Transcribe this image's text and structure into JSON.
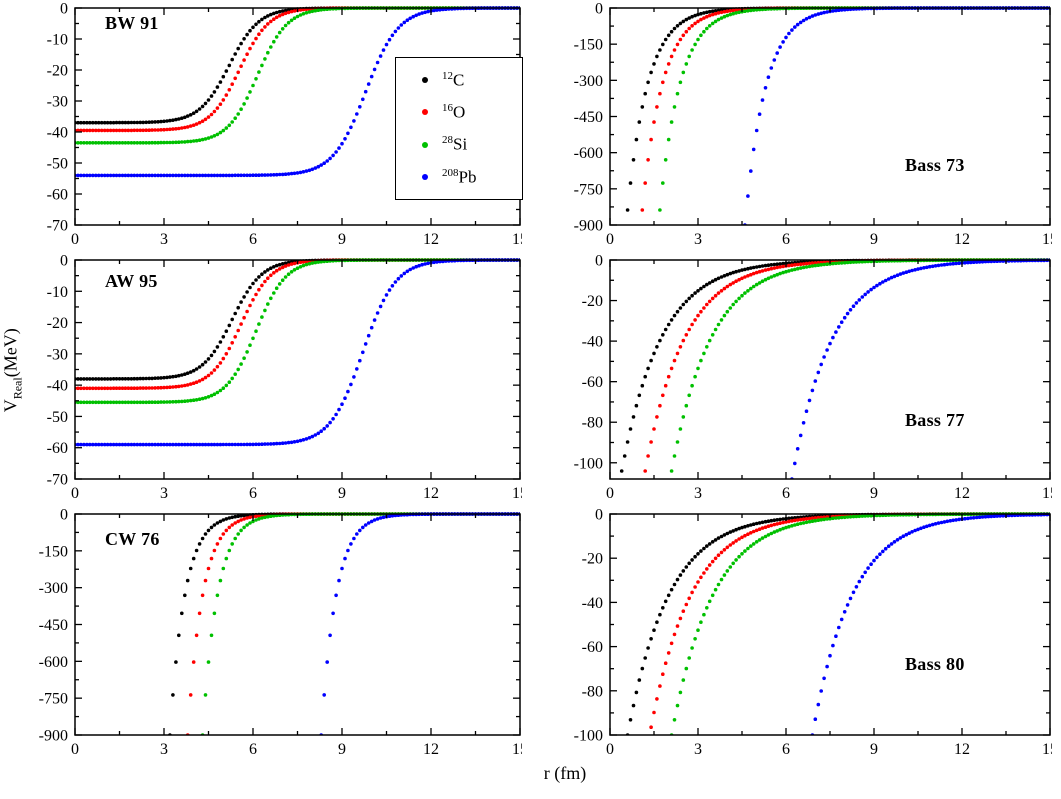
{
  "figure": {
    "xlabel": "r (fm)",
    "ylabel": {
      "main": "V",
      "sub": "Real",
      "unit": "(MeV)"
    }
  },
  "legend": {
    "entries": [
      {
        "mass": "12",
        "symbol": "C",
        "color": "#000000"
      },
      {
        "mass": "16",
        "symbol": "O",
        "color": "#ff0000"
      },
      {
        "mass": "28",
        "symbol": "Si",
        "color": "#00c000"
      },
      {
        "mass": "208",
        "symbol": "Pb",
        "color": "#0000ff"
      }
    ]
  },
  "chart_data": [
    {
      "id": "bw91",
      "type": "scatter",
      "title": "BW 91",
      "xlim": [
        0,
        15
      ],
      "ylim": [
        -70,
        0
      ],
      "xticks": [
        0,
        3,
        6,
        9,
        12,
        15
      ],
      "yticks": [
        0,
        -10,
        -20,
        -30,
        -40,
        -50,
        -60,
        -70
      ],
      "x_minor": 1.5,
      "y_minor": 5,
      "xlabel": "r (fm)",
      "ylabel": "V_Real (MeV)",
      "series": [
        {
          "name": "12C",
          "color": "#000000",
          "model": "woods-saxon",
          "V0": 37,
          "R": 5.2,
          "a": 0.5
        },
        {
          "name": "16O",
          "color": "#ff0000",
          "model": "woods-saxon",
          "V0": 39.5,
          "R": 5.55,
          "a": 0.5
        },
        {
          "name": "28Si",
          "color": "#00c000",
          "model": "woods-saxon",
          "V0": 43.5,
          "R": 6.15,
          "a": 0.5
        },
        {
          "name": "208Pb",
          "color": "#0000ff",
          "model": "woods-saxon",
          "V0": 54,
          "R": 9.8,
          "a": 0.55
        }
      ]
    },
    {
      "id": "bass73",
      "type": "scatter",
      "title": "Bass 73",
      "xlim": [
        0,
        15
      ],
      "ylim": [
        -900,
        0
      ],
      "xticks": [
        0,
        3,
        6,
        9,
        12,
        15
      ],
      "yticks": [
        0,
        -150,
        -300,
        -450,
        -600,
        -750,
        -900
      ],
      "x_minor": 1.5,
      "y_minor": 75,
      "xlabel": "r (fm)",
      "ylabel": "V_Real (MeV)",
      "series": [
        {
          "name": "12C",
          "color": "#000000",
          "model": "exp",
          "V0": 900,
          "r0": 0.55,
          "d": 0.7
        },
        {
          "name": "16O",
          "color": "#ff0000",
          "model": "exp",
          "V0": 900,
          "r0": 1.05,
          "d": 0.7
        },
        {
          "name": "28Si",
          "color": "#00c000",
          "model": "exp",
          "V0": 900,
          "r0": 1.65,
          "d": 0.7
        },
        {
          "name": "208Pb",
          "color": "#0000ff",
          "model": "exp",
          "V0": 900,
          "r0": 4.6,
          "d": 0.7
        }
      ]
    },
    {
      "id": "aw95",
      "type": "scatter",
      "title": "AW 95",
      "xlim": [
        0,
        15
      ],
      "ylim": [
        -70,
        0
      ],
      "xticks": [
        0,
        3,
        6,
        9,
        12,
        15
      ],
      "yticks": [
        0,
        -10,
        -20,
        -30,
        -40,
        -50,
        -60,
        -70
      ],
      "x_minor": 1.5,
      "y_minor": 5,
      "xlabel": "r (fm)",
      "ylabel": "V_Real (MeV)",
      "series": [
        {
          "name": "12C",
          "color": "#000000",
          "model": "woods-saxon",
          "V0": 38,
          "R": 5.3,
          "a": 0.5
        },
        {
          "name": "16O",
          "color": "#ff0000",
          "model": "woods-saxon",
          "V0": 41,
          "R": 5.6,
          "a": 0.5
        },
        {
          "name": "28Si",
          "color": "#00c000",
          "model": "woods-saxon",
          "V0": 45.5,
          "R": 6.1,
          "a": 0.5
        },
        {
          "name": "208Pb",
          "color": "#0000ff",
          "model": "woods-saxon",
          "V0": 59,
          "R": 9.7,
          "a": 0.55
        }
      ]
    },
    {
      "id": "bass77",
      "type": "scatter",
      "title": "Bass 77",
      "xlim": [
        0,
        15
      ],
      "ylim": [
        -108,
        0
      ],
      "xticks": [
        0,
        3,
        6,
        9,
        12,
        15
      ],
      "yticks": [
        0,
        -20,
        -40,
        -60,
        -80,
        -100
      ],
      "x_minor": 1.5,
      "y_minor": 10,
      "xlabel": "r (fm)",
      "ylabel": "V_Real (MeV)",
      "series": [
        {
          "name": "12C",
          "color": "#000000",
          "model": "exp",
          "V0": 108,
          "r0": 0.35,
          "d": 1.35
        },
        {
          "name": "16O",
          "color": "#ff0000",
          "model": "exp",
          "V0": 108,
          "r0": 1.15,
          "d": 1.35
        },
        {
          "name": "28Si",
          "color": "#00c000",
          "model": "exp",
          "V0": 108,
          "r0": 2.05,
          "d": 1.35
        },
        {
          "name": "208Pb",
          "color": "#0000ff",
          "model": "exp",
          "V0": 108,
          "r0": 6.2,
          "d": 1.35
        }
      ]
    },
    {
      "id": "cw76",
      "type": "scatter",
      "title": "CW 76",
      "xlim": [
        0,
        15
      ],
      "ylim": [
        -900,
        0
      ],
      "xticks": [
        0,
        3,
        6,
        9,
        12,
        15
      ],
      "yticks": [
        0,
        -150,
        -300,
        -450,
        -600,
        -750,
        -900
      ],
      "x_minor": 1.5,
      "y_minor": 75,
      "xlabel": "r (fm)",
      "ylabel": "V_Real (MeV)",
      "series": [
        {
          "name": "12C",
          "color": "#000000",
          "model": "exp",
          "V0": 900,
          "r0": 3.2,
          "d": 0.5
        },
        {
          "name": "16O",
          "color": "#ff0000",
          "model": "exp",
          "V0": 900,
          "r0": 3.8,
          "d": 0.5
        },
        {
          "name": "28Si",
          "color": "#00c000",
          "model": "exp",
          "V0": 900,
          "r0": 4.3,
          "d": 0.5
        },
        {
          "name": "208Pb",
          "color": "#0000ff",
          "model": "exp",
          "V0": 900,
          "r0": 8.3,
          "d": 0.5
        }
      ]
    },
    {
      "id": "bass80",
      "type": "scatter",
      "title": "Bass 80",
      "xlim": [
        0,
        15
      ],
      "ylim": [
        -100,
        0
      ],
      "xticks": [
        0,
        3,
        6,
        9,
        12,
        15
      ],
      "yticks": [
        0,
        -20,
        -40,
        -60,
        -80,
        -100
      ],
      "x_minor": 1.5,
      "y_minor": 10,
      "xlabel": "r (fm)",
      "ylabel": "V_Real (MeV)",
      "series": [
        {
          "name": "12C",
          "color": "#000000",
          "model": "exp",
          "V0": 100,
          "r0": 0.6,
          "d": 1.4
        },
        {
          "name": "16O",
          "color": "#ff0000",
          "model": "exp",
          "V0": 100,
          "r0": 1.35,
          "d": 1.4
        },
        {
          "name": "28Si",
          "color": "#00c000",
          "model": "exp",
          "V0": 100,
          "r0": 2.1,
          "d": 1.4
        },
        {
          "name": "208Pb",
          "color": "#0000ff",
          "model": "exp",
          "V0": 100,
          "r0": 6.9,
          "d": 1.35
        }
      ]
    }
  ]
}
